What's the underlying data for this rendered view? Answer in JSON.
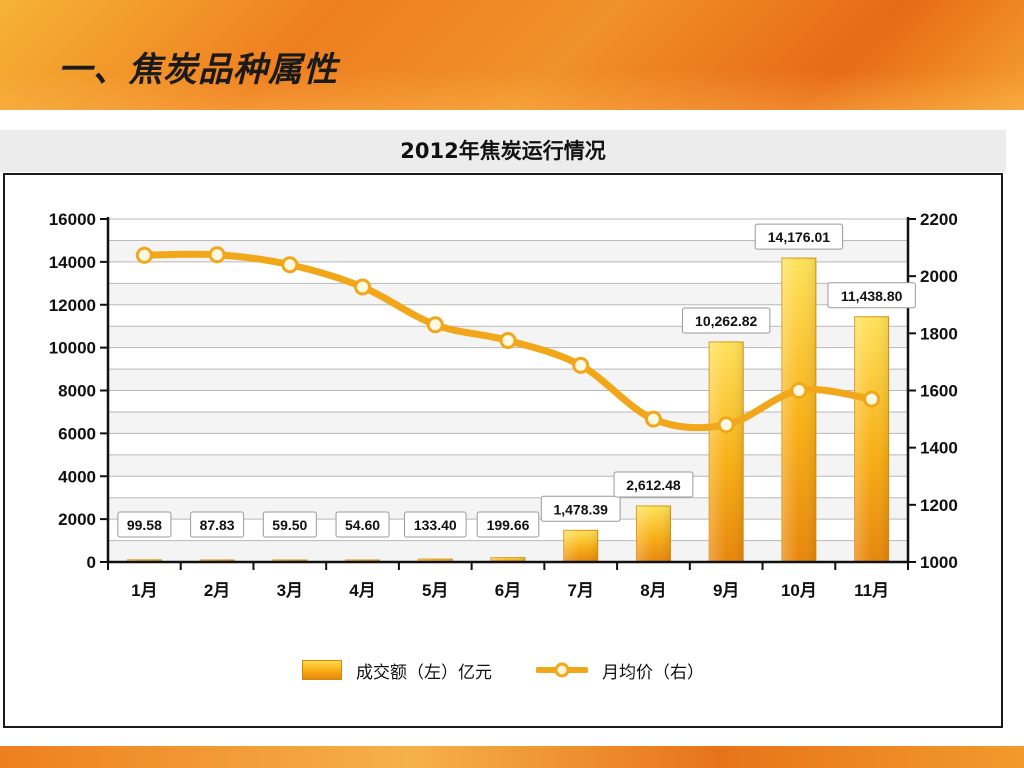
{
  "slide": {
    "title": "一、焦炭品种属性"
  },
  "colors": {
    "bar_top": "#FFD84A",
    "bar_bottom": "#E8860C",
    "line": "#F2A71A",
    "accent": "#EE7F1F"
  },
  "chart_data": {
    "type": "bar+line",
    "title": "2012年焦炭运行情况",
    "categories": [
      "1月",
      "2月",
      "3月",
      "4月",
      "5月",
      "6月",
      "7月",
      "8月",
      "9月",
      "10月",
      "11月"
    ],
    "series": [
      {
        "name": "成交额（左）亿元",
        "type": "bar",
        "axis": "left",
        "values": [
          99.58,
          87.83,
          59.5,
          54.6,
          133.4,
          199.66,
          1478.39,
          2612.48,
          10262.82,
          14176.01,
          11438.8
        ],
        "labels": [
          "99.58",
          "87.83",
          "59.50",
          "54.60",
          "133.40",
          "199.66",
          "1,478.39",
          "2,612.48",
          "10,262.82",
          "14,176.01",
          "11,438.80"
        ]
      },
      {
        "name": "月均价（右）",
        "type": "line",
        "axis": "right",
        "values": [
          2073,
          2075,
          2040,
          1962,
          1830,
          1775,
          1688,
          1500,
          1480,
          1600,
          1570
        ]
      }
    ],
    "y_left": {
      "ticks": [
        "0",
        "2000",
        "4000",
        "6000",
        "8000",
        "10000",
        "12000",
        "14000",
        "16000"
      ],
      "lim": [
        0,
        16000
      ]
    },
    "y_right": {
      "ticks": [
        "1000",
        "1200",
        "1400",
        "1600",
        "1800",
        "2000",
        "2200"
      ],
      "lim": [
        1000,
        2200
      ]
    },
    "grid": true,
    "legend_position": "bottom"
  }
}
